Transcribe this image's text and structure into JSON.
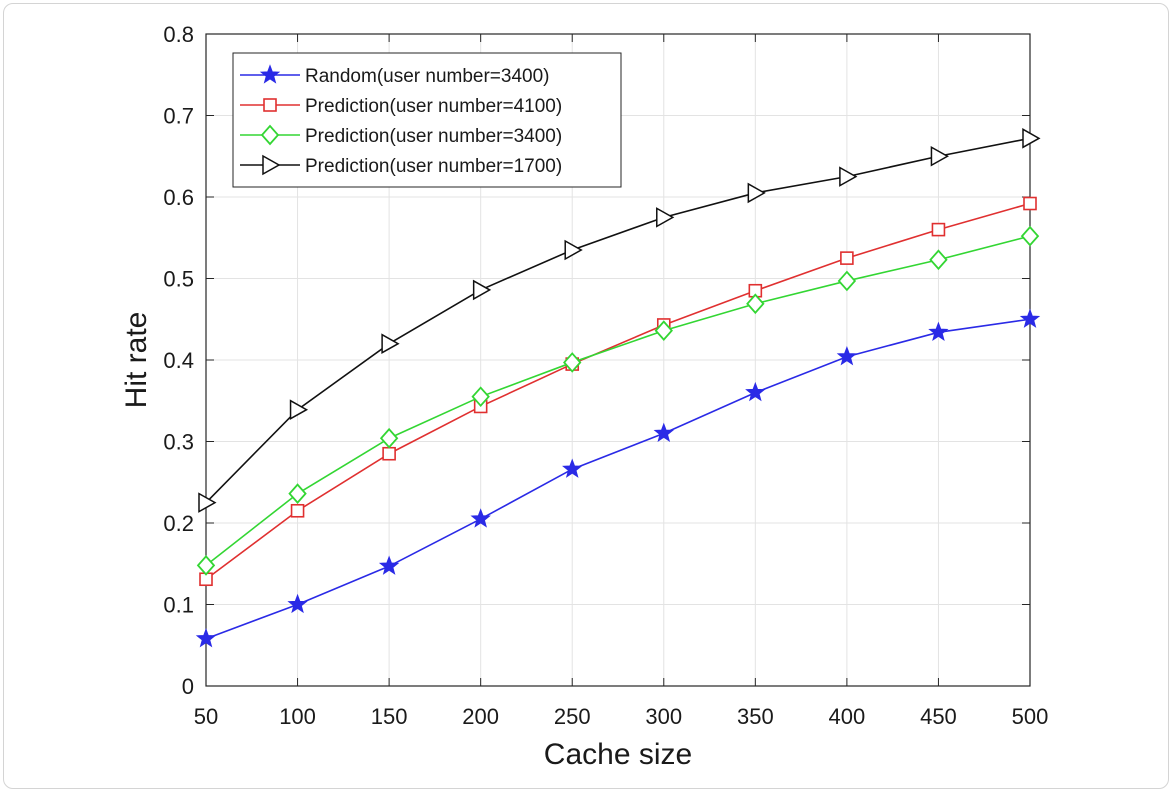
{
  "chart_data": {
    "type": "line",
    "xlabel": "Cache size",
    "ylabel": "Hit rate",
    "x": [
      50,
      100,
      150,
      200,
      250,
      300,
      350,
      400,
      450,
      500
    ],
    "xticks": [
      "50",
      "100",
      "150",
      "200",
      "250",
      "300",
      "350",
      "400",
      "450",
      "500"
    ],
    "yticks": [
      "0",
      "0.1",
      "0.2",
      "0.3",
      "0.4",
      "0.5",
      "0.6",
      "0.7",
      "0.8"
    ],
    "xlim": [
      50,
      500
    ],
    "ylim": [
      0,
      0.8
    ],
    "grid": true,
    "legend_position": "top-left",
    "series": [
      {
        "name": "Random(user number=3400)",
        "color": "#2a2ae6",
        "marker": "star",
        "values": [
          0.058,
          0.1,
          0.147,
          0.205,
          0.266,
          0.31,
          0.36,
          0.404,
          0.434,
          0.45
        ]
      },
      {
        "name": "Prediction(user number=4100)",
        "color": "#e03030",
        "marker": "square",
        "values": [
          0.131,
          0.215,
          0.285,
          0.343,
          0.395,
          0.443,
          0.485,
          0.525,
          0.56,
          0.592
        ]
      },
      {
        "name": "Prediction(user number=3400)",
        "color": "#33d633",
        "marker": "diamond",
        "values": [
          0.148,
          0.236,
          0.304,
          0.355,
          0.397,
          0.436,
          0.469,
          0.497,
          0.523,
          0.552
        ]
      },
      {
        "name": "Prediction(user number=1700)",
        "color": "#111111",
        "marker": "triangle-right",
        "values": [
          0.225,
          0.339,
          0.42,
          0.486,
          0.535,
          0.575,
          0.605,
          0.625,
          0.65,
          0.672
        ]
      }
    ]
  }
}
